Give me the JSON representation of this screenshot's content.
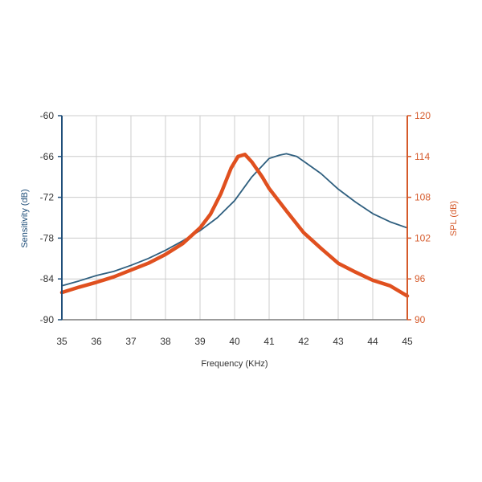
{
  "chart_data": {
    "type": "line",
    "xlabel": "Frequency (KHz)",
    "ylabel_left": "Sensitivity (dB)",
    "ylabel_right": "SPL (dB)",
    "xlim": [
      35,
      45
    ],
    "ylim_left": [
      -90,
      -60
    ],
    "ylim_right": [
      90,
      120
    ],
    "x_ticks": [
      "35",
      "36",
      "37",
      "38",
      "39",
      "40",
      "41",
      "42",
      "43",
      "44",
      "45"
    ],
    "y_ticks_left": [
      "-90",
      "-84",
      "-78",
      "-72",
      "-66",
      "-60"
    ],
    "y_ticks_right": [
      "90",
      "96",
      "102",
      "108",
      "114",
      "120"
    ],
    "grid": true,
    "colors": {
      "sensitivity": "#2f5f7f",
      "spl": "#e0501f",
      "grid": "#cccccc",
      "left_axis": "#1f4e79",
      "right_axis": "#d55a2b"
    },
    "series": [
      {
        "key": "sensitivity",
        "axis": "left",
        "x": [
          35,
          35.5,
          36,
          36.5,
          37,
          37.5,
          38,
          38.5,
          39,
          39.5,
          40,
          40.5,
          41,
          41.3,
          41.5,
          41.8,
          42,
          42.5,
          43,
          43.5,
          44,
          44.5,
          45
        ],
        "values": [
          -85.0,
          -84.3,
          -83.5,
          -82.9,
          -82.0,
          -81.0,
          -79.8,
          -78.4,
          -76.9,
          -75.0,
          -72.5,
          -69.0,
          -66.3,
          -65.8,
          -65.6,
          -66.0,
          -66.7,
          -68.5,
          -70.8,
          -72.7,
          -74.4,
          -75.6,
          -76.5
        ]
      },
      {
        "key": "spl",
        "axis": "right",
        "x": [
          35,
          35.5,
          36,
          36.5,
          37,
          37.5,
          38,
          38.5,
          39,
          39.3,
          39.6,
          39.9,
          40.1,
          40.3,
          40.5,
          40.8,
          41,
          41.5,
          42,
          42.5,
          43,
          43.5,
          44,
          44.5,
          45
        ],
        "values": [
          94.0,
          94.8,
          95.5,
          96.3,
          97.3,
          98.3,
          99.6,
          101.2,
          103.5,
          105.5,
          108.5,
          112.3,
          114.0,
          114.3,
          113.2,
          111.0,
          109.3,
          106.0,
          102.8,
          100.5,
          98.3,
          97.0,
          95.8,
          95.0,
          93.5
        ]
      }
    ]
  }
}
